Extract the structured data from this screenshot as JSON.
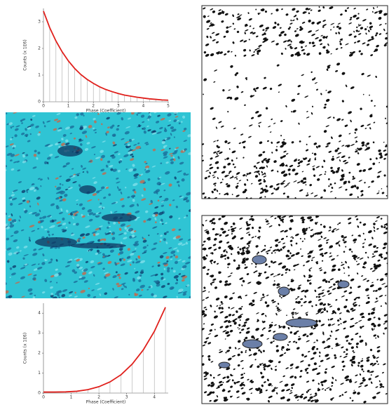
{
  "chart_data": [
    {
      "type": "line",
      "x_label": "Phase (Coefficient)",
      "y_label": "Counts (x 1E6)",
      "color": "#e0201c",
      "x": [
        0,
        0.25,
        0.5,
        0.75,
        1,
        1.25,
        1.5,
        1.75,
        2,
        2.25,
        2.5,
        2.75,
        3,
        3.25,
        3.5,
        3.75,
        4,
        4.25,
        4.5,
        4.75,
        5
      ],
      "values": [
        3.4,
        2.78,
        2.28,
        1.87,
        1.53,
        1.25,
        1.02,
        0.84,
        0.69,
        0.56,
        0.46,
        0.38,
        0.31,
        0.25,
        0.21,
        0.17,
        0.14,
        0.11,
        0.09,
        0.07,
        0.06
      ],
      "xlim": [
        0,
        5
      ],
      "ylim": [
        0,
        3.5
      ],
      "xticks": [
        0,
        1,
        2,
        3,
        4,
        5
      ],
      "yticks": [
        0,
        1,
        2,
        3
      ]
    },
    {
      "type": "line",
      "x_label": "Phase (Coefficient)",
      "y_label": "Counts (x 1E6)",
      "color": "#e0201c",
      "x": [
        0,
        0.4,
        0.8,
        1.2,
        1.6,
        2.0,
        2.4,
        2.8,
        3.2,
        3.6,
        4.0,
        4.4
      ],
      "values": [
        0.05,
        0.05,
        0.06,
        0.09,
        0.17,
        0.32,
        0.56,
        0.92,
        1.45,
        2.16,
        3.09,
        4.3
      ],
      "xlim": [
        0,
        4.5
      ],
      "ylim": [
        0,
        4.5
      ],
      "xticks": [
        0,
        1,
        2,
        3,
        4
      ],
      "yticks": [
        0,
        1,
        2,
        3,
        4
      ]
    }
  ]
}
